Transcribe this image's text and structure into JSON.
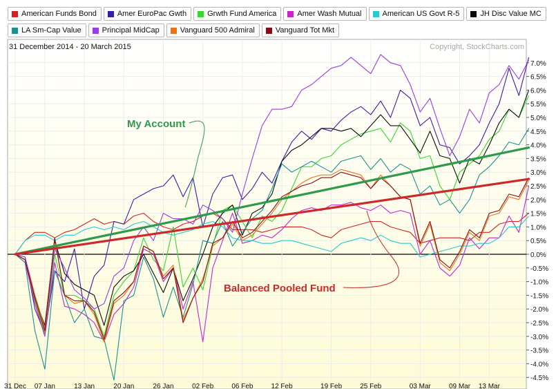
{
  "chart_data": {
    "type": "line",
    "date_range": "31 December 2014 - 20 March 2015",
    "copyright": "Copyright, StockCharts.com",
    "ylim": [
      -4.7,
      7.5
    ],
    "y_ticks": [
      "7.0%",
      "6.5%",
      "6.0%",
      "5.5%",
      "5.0%",
      "4.5%",
      "4.0%",
      "3.5%",
      "3.0%",
      "2.5%",
      "2.0%",
      "1.5%",
      "1.0%",
      "0.5%",
      "0.0%",
      "-0.5%",
      "-1.0%",
      "-1.5%",
      "-2.0%",
      "-2.5%",
      "-3.0%",
      "-3.5%",
      "-4.0%",
      "-4.5%"
    ],
    "x_ticks": [
      "31 Dec",
      "07 Jan",
      "13 Jan",
      "20 Jan",
      "26 Jan",
      "02 Feb",
      "06 Feb",
      "12 Feb",
      "19 Feb",
      "25 Feb",
      "03 Mar",
      "09 Mar",
      "13 Mar"
    ],
    "x_tick_index": [
      0,
      3,
      7,
      11,
      15,
      19,
      23,
      27,
      32,
      36,
      41,
      45,
      48
    ],
    "series": [
      {
        "name": "American Funds Bond",
        "color": "#d42020",
        "values": [
          0,
          0.5,
          0.8,
          0.8,
          0.6,
          0.8,
          0.9,
          1.1,
          1.3,
          1.1,
          1.2,
          1.1,
          1.4,
          1.5,
          1.2,
          1.0,
          0.9,
          1.1,
          1.2,
          1.4,
          1.5,
          1.3,
          0.9,
          0.9,
          0.9,
          0.8,
          0.9,
          1.0,
          1.0,
          1.0,
          0.9,
          0.7,
          0.6,
          0.9,
          1.0,
          1.1,
          1.2,
          1.2,
          1.0,
          0.9,
          0.8,
          0.4,
          0.5,
          0.6,
          0.6,
          0.6,
          0.5,
          0.8,
          0.8,
          1.1,
          1.2,
          1.2,
          1.5
        ]
      },
      {
        "name": "Amer EuroPac Gwth",
        "color": "#3a1aa8",
        "values": [
          0,
          -0.1,
          -2.0,
          -2.9,
          -0.6,
          -1.0,
          0.2,
          -2.0,
          -0.8,
          -0.4,
          1.2,
          1.1,
          2.0,
          2.2,
          2.4,
          2.5,
          2.9,
          2.1,
          2.8,
          1.0,
          2.2,
          2.8,
          2.9,
          2.0,
          2.4,
          3.0,
          2.6,
          3.4,
          4.1,
          4.5,
          4.2,
          4.6,
          4.5,
          4.9,
          5.2,
          5.4,
          5.1,
          5.6,
          5.0,
          6.0,
          5.7,
          4.7,
          5.0,
          4.0,
          3.9,
          3.3,
          3.6,
          4.0,
          4.8,
          5.5,
          6.8,
          5.8,
          7.2
        ]
      },
      {
        "name": "Grwth Fund America",
        "color": "#35d92f",
        "values": [
          0,
          -0.2,
          -1.7,
          -2.9,
          0.0,
          -1.5,
          -1.5,
          -1.7,
          -2.0,
          -3.0,
          -1.5,
          -1.0,
          -0.6,
          0.6,
          -0.2,
          -0.6,
          1.0,
          -1.2,
          -0.5,
          -1.3,
          0.3,
          1.6,
          1.8,
          1.2,
          0.6,
          1.4,
          1.2,
          1.6,
          2.4,
          3.2,
          3.2,
          3.5,
          3.6,
          4.0,
          4.2,
          4.4,
          4.5,
          4.6,
          4.1,
          4.8,
          4.5,
          3.5,
          3.6,
          2.5,
          2.0,
          3.0,
          3.3,
          3.6,
          4.2,
          4.5,
          5.3,
          5.0,
          5.8
        ]
      },
      {
        "name": "Amer Wash Mutual",
        "color": "#cc22cc",
        "values": [
          0,
          -0.3,
          -1.8,
          -3.0,
          -0.3,
          -1.9,
          -2.0,
          -2.2,
          -2.5,
          -3.2,
          -2.2,
          -1.8,
          -1.2,
          0.2,
          0.0,
          -1.0,
          -0.5,
          -2.0,
          -1.0,
          -3.2,
          -0.5,
          0.5,
          1.5,
          0.4,
          0.5,
          0.7,
          0.6,
          0.9,
          1.3,
          1.6,
          1.7,
          1.6,
          1.8,
          1.8,
          1.9,
          1.7,
          1.6,
          1.8,
          1.5,
          1.6,
          1.5,
          0.0,
          0.5,
          -0.5,
          -0.8,
          -0.4,
          0.6,
          0.2,
          0.6,
          0.6,
          1.4,
          0.8,
          2.5
        ]
      },
      {
        "name": "American US Govt R-5",
        "color": "#22cccc",
        "values": [
          0,
          0.5,
          0.7,
          0.7,
          0.5,
          0.7,
          0.7,
          0.9,
          1.0,
          0.9,
          1.0,
          0.9,
          1.1,
          1.2,
          1.0,
          0.8,
          0.7,
          0.8,
          0.9,
          1.1,
          1.2,
          1.0,
          0.6,
          0.5,
          0.5,
          0.4,
          0.4,
          0.5,
          0.5,
          0.4,
          0.3,
          0.2,
          0.1,
          0.4,
          0.5,
          0.6,
          0.5,
          0.7,
          0.5,
          0.4,
          0.4,
          -0.1,
          0.0,
          0.1,
          0.2,
          0.3,
          0.3,
          0.4,
          0.4,
          0.6,
          1.0,
          1.0,
          1.4
        ]
      },
      {
        "name": "JH Disc Value MC",
        "color": "#0a0a0a",
        "values": [
          0,
          -0.2,
          -1.6,
          -2.6,
          0.5,
          -0.7,
          -1.1,
          -1.3,
          -1.5,
          -2.6,
          -1.2,
          -0.8,
          -0.6,
          0.0,
          -0.7,
          -1.4,
          -0.5,
          -1.7,
          -0.9,
          0.0,
          1.0,
          1.5,
          1.8,
          0.7,
          1.5,
          1.7,
          2.2,
          3.4,
          3.8,
          4.0,
          4.3,
          4.6,
          4.6,
          4.5,
          4.6,
          4.3,
          4.7,
          5.1,
          4.7,
          4.7,
          4.2,
          3.7,
          4.5,
          3.6,
          3.5,
          2.6,
          3.5,
          3.3,
          4.0,
          4.8,
          5.3,
          5.0,
          6.0
        ]
      },
      {
        "name": "LA Sm-Cap Value",
        "color": "#1a9090",
        "values": [
          0,
          -0.3,
          -2.8,
          -4.2,
          -0.6,
          -1.5,
          -2.5,
          -2.0,
          -3.0,
          -3.1,
          -4.6,
          -1.7,
          -1.5,
          -0.1,
          -0.9,
          -2.3,
          -1.2,
          -2.3,
          -1.1,
          0.5,
          0.4,
          1.2,
          0.3,
          0.8,
          1.3,
          1.6,
          2.4,
          3.3,
          3.0,
          3.2,
          3.4,
          3.2,
          3.0,
          3.4,
          3.5,
          3.6,
          3.1,
          3.5,
          3.0,
          3.3,
          3.1,
          2.2,
          2.5,
          1.8,
          2.0,
          1.5,
          2.0,
          2.9,
          3.2,
          3.6,
          4.1,
          4.0,
          4.6
        ]
      },
      {
        "name": "Principal MidCap",
        "color": "#9b3ae8",
        "values": [
          0,
          -0.1,
          -1.5,
          -2.7,
          0.2,
          -0.5,
          -1.3,
          -1.6,
          -2.0,
          -1.8,
          -0.8,
          -0.5,
          0.5,
          1.0,
          0.5,
          1.5,
          1.3,
          1.3,
          1.1,
          1.8,
          1.6,
          1.3,
          0.8,
          2.2,
          3.5,
          4.7,
          5.3,
          5.3,
          5.4,
          6.0,
          6.2,
          6.5,
          6.8,
          6.9,
          7.2,
          6.9,
          6.6,
          7.3,
          7.0,
          6.9,
          6.2,
          5.2,
          5.7,
          4.6,
          3.6,
          4.3,
          5.3,
          4.8,
          5.9,
          6.2,
          6.9,
          6.4,
          7.1
        ]
      },
      {
        "name": "Vanguard 500 Admiral",
        "color": "#e8741a",
        "values": [
          0,
          -0.2,
          -1.5,
          -2.7,
          0.6,
          -1.5,
          -1.8,
          -1.7,
          -2.2,
          -3.2,
          -1.8,
          -1.5,
          -1.0,
          0.3,
          0.1,
          -0.8,
          -0.4,
          -2.4,
          -1.6,
          -0.9,
          0.3,
          0.6,
          1.1,
          0.5,
          0.7,
          1.1,
          1.5,
          2.0,
          2.3,
          2.6,
          2.8,
          2.9,
          2.9,
          3.1,
          3.0,
          2.9,
          2.4,
          2.9,
          2.5,
          2.1,
          2.0,
          0.3,
          1.1,
          -0.3,
          -0.6,
          0.0,
          0.8,
          0.5,
          1.4,
          1.5,
          2.1,
          2.0,
          2.7
        ]
      },
      {
        "name": "Vanguard Tot Mkt",
        "color": "#8b0a14",
        "values": [
          0,
          -0.2,
          -1.6,
          -2.8,
          0.6,
          -1.5,
          -1.7,
          -1.7,
          -2.1,
          -3.1,
          -1.7,
          -1.4,
          -1.0,
          0.3,
          0.1,
          -0.9,
          -0.5,
          -2.5,
          -1.6,
          -1.0,
          0.4,
          0.6,
          1.2,
          0.6,
          0.8,
          1.2,
          1.6,
          2.1,
          2.3,
          2.5,
          2.6,
          2.8,
          2.8,
          3.0,
          2.9,
          2.8,
          2.4,
          2.8,
          2.5,
          2.1,
          2.0,
          0.4,
          1.2,
          -0.2,
          -0.5,
          0.1,
          0.9,
          0.6,
          1.5,
          1.6,
          2.2,
          2.1,
          2.8
        ]
      }
    ],
    "trend_lines": [
      {
        "start": [
          0,
          0.0
        ],
        "end": [
          52,
          3.9
        ],
        "color": "#2f9a4a"
      },
      {
        "start": [
          0,
          0.0
        ],
        "end": [
          52,
          2.75
        ],
        "color": "#cc2a2a"
      }
    ],
    "annotations": [
      {
        "text": "My Account",
        "color": "#2f9a4a"
      },
      {
        "text": "Balanced Pooled Fund",
        "color": "#cc2a2a"
      }
    ],
    "grid": true
  }
}
